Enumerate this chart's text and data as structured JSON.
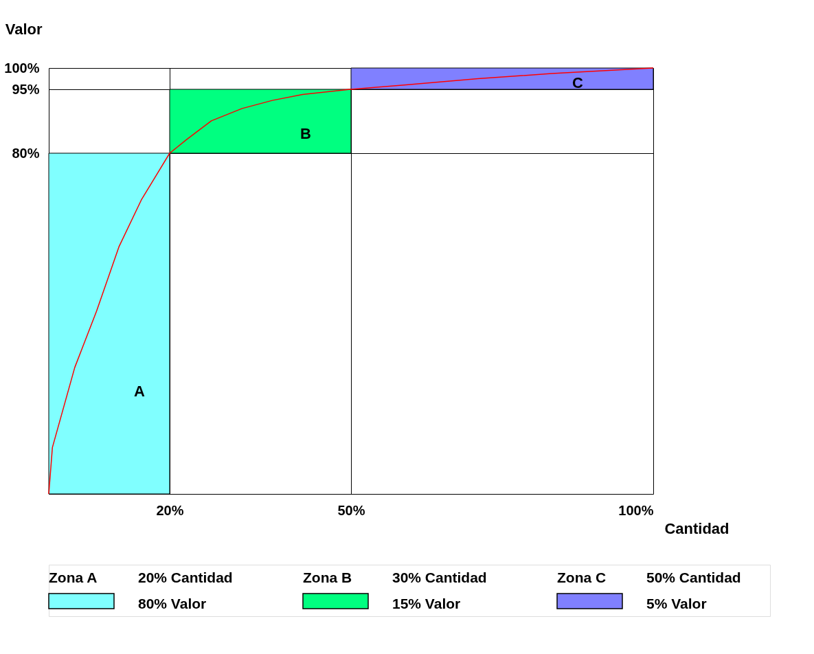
{
  "chart_data": {
    "type": "line",
    "xlabel": "Cantidad",
    "ylabel": "Valor",
    "xlim": [
      0,
      100
    ],
    "ylim": [
      0,
      100
    ],
    "xticks": [
      {
        "value": 20,
        "label": "20%"
      },
      {
        "value": 50,
        "label": "50%"
      },
      {
        "value": 100,
        "label": "100%"
      }
    ],
    "yticks": [
      {
        "value": 80,
        "label": "80%"
      },
      {
        "value": 95,
        "label": "95%"
      },
      {
        "value": 100,
        "label": "100%"
      }
    ],
    "grid": true,
    "marker": "none",
    "line_style": "solid",
    "series": [
      {
        "color": "#ff0000",
        "x": [
          0,
          0.6,
          4.3,
          7.9,
          11.6,
          15.3,
          20,
          22.8,
          26.9,
          32,
          37,
          42,
          50,
          58.8,
          71,
          83.2,
          100
        ],
        "values": [
          0,
          10.9,
          29.7,
          42.9,
          58,
          69,
          80,
          83.2,
          87.6,
          90.5,
          92.4,
          93.8,
          95,
          96,
          97.5,
          98.7,
          100
        ]
      }
    ],
    "bands": [
      {
        "axis": "x",
        "from": 0,
        "to": 20,
        "label": "A",
        "color": "#80ffff"
      },
      {
        "axis": "x",
        "from": 20,
        "to": 50,
        "label": "B",
        "color": "#00ff80"
      },
      {
        "axis": "x",
        "from": 50,
        "to": 100,
        "label": "C",
        "color": "#8080ff"
      }
    ],
    "annotations": [
      "Zona A",
      "20% Cantidad",
      "80% Valor",
      "Zona B",
      "30% Cantidad",
      "15% Valor",
      "Zona C",
      "50% Cantidad",
      "5% Valor"
    ]
  }
}
